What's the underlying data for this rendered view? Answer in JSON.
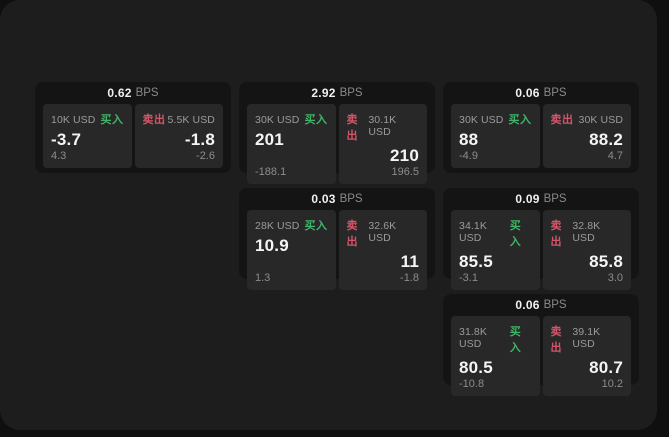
{
  "labels": {
    "buy": "买入",
    "sell": "卖出",
    "bps_unit": "BPS"
  },
  "colors": {
    "buy_green": "#3fb567",
    "sell_red": "#d45569",
    "surface": "#1d1d1d",
    "card_bg": "#141414",
    "panel_bg": "#282828"
  },
  "cards": [
    {
      "bps": "0.62",
      "buy": {
        "size": "10K USD",
        "price": "-3.7",
        "delta": "4.3"
      },
      "sell": {
        "size": "5.5K USD",
        "price": "-1.8",
        "delta": "-2.6"
      }
    },
    {
      "bps": "2.92",
      "buy": {
        "size": "30K USD",
        "price": "201",
        "delta": "-188.1"
      },
      "sell": {
        "size": "30.1K USD",
        "price": "210",
        "delta": "196.5"
      }
    },
    {
      "bps": "0.06",
      "buy": {
        "size": "30K USD",
        "price": "88",
        "delta": "-4.9"
      },
      "sell": {
        "size": "30K USD",
        "price": "88.2",
        "delta": "4.7"
      }
    },
    {
      "bps": "0.03",
      "buy": {
        "size": "28K USD",
        "price": "10.9",
        "delta": "1.3"
      },
      "sell": {
        "size": "32.6K USD",
        "price": "11",
        "delta": "-1.8"
      }
    },
    {
      "bps": "0.09",
      "buy": {
        "size": "34.1K USD",
        "price": "85.5",
        "delta": "-3.1"
      },
      "sell": {
        "size": "32.8K USD",
        "price": "85.8",
        "delta": "3.0"
      }
    },
    {
      "bps": "0.06",
      "buy": {
        "size": "31.8K USD",
        "price": "80.5",
        "delta": "-10.8"
      },
      "sell": {
        "size": "39.1K USD",
        "price": "80.7",
        "delta": "10.2"
      }
    }
  ]
}
